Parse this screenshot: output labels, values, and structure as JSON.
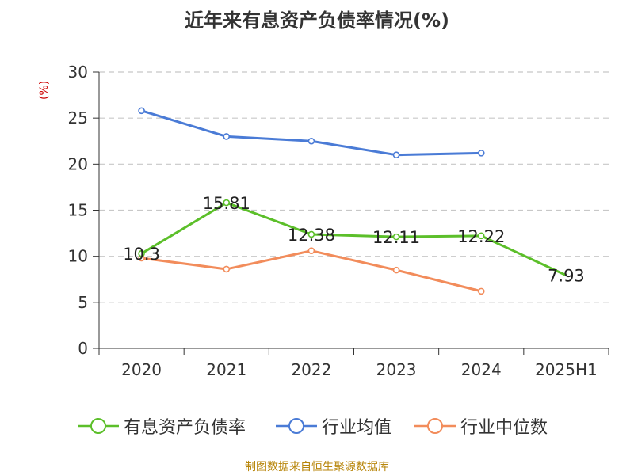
{
  "chart_data": {
    "type": "line",
    "title": "近年来有息资产负债率情况(%)",
    "ylabel": "(%)",
    "categories": [
      "2020",
      "2021",
      "2022",
      "2023",
      "2024",
      "2025H1"
    ],
    "ylim": [
      0,
      30
    ],
    "yticks": [
      0,
      5,
      10,
      15,
      20,
      25,
      30
    ],
    "grid": true,
    "legend_position": "bottom",
    "series": [
      {
        "name": "有息资产负债率",
        "color": "#5cbf2a",
        "values": [
          10.3,
          15.81,
          12.38,
          12.11,
          12.22,
          7.93
        ],
        "labels": [
          "10.3",
          "15.81",
          "12.38",
          "12.11",
          "12.22",
          "7.93"
        ]
      },
      {
        "name": "行业均值",
        "color": "#4a7bd6",
        "values": [
          25.8,
          23.0,
          22.5,
          21.0,
          21.2,
          null
        ]
      },
      {
        "name": "行业中位数",
        "color": "#f28c5b",
        "values": [
          9.8,
          8.6,
          10.6,
          8.5,
          6.2,
          null
        ]
      }
    ]
  },
  "footer": "制图数据来自恒生聚源数据库"
}
